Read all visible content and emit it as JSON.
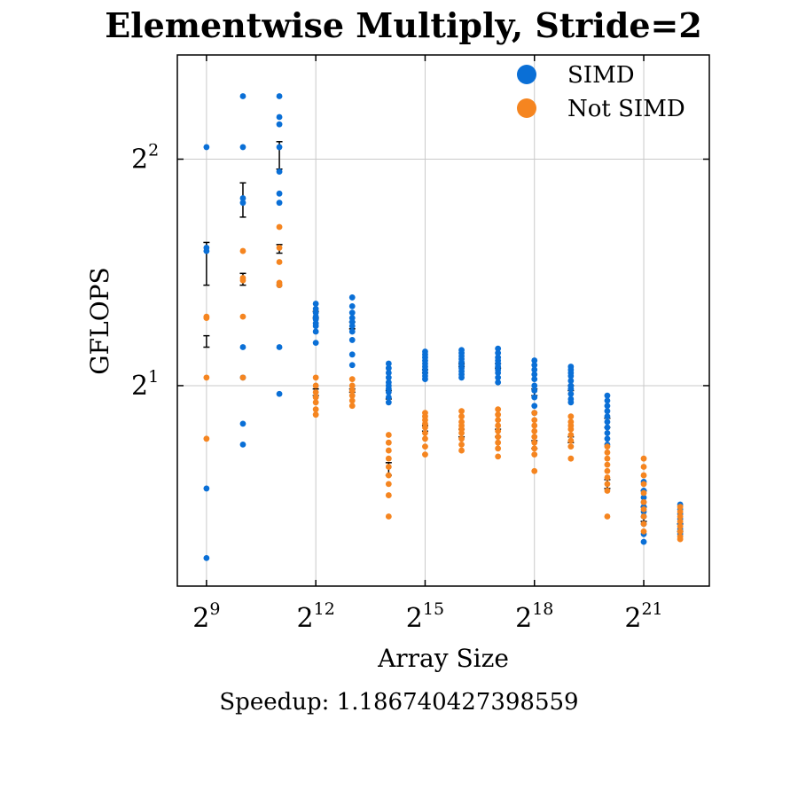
{
  "chart_data": {
    "type": "scatter",
    "title": "Elementwise Multiply, Stride=2",
    "xlabel": "Array Size",
    "ylabel": "GFLOPS",
    "caption": "Speedup: 1.186740427398559",
    "x_scale": "log2",
    "y_scale": "log2",
    "xlim_exp": [
      8.2,
      22.8
    ],
    "ylim_exp": [
      0.115,
      2.46
    ],
    "x_ticks": [
      {
        "base": "2",
        "exp": "9",
        "value": 512
      },
      {
        "base": "2",
        "exp": "12",
        "value": 4096
      },
      {
        "base": "2",
        "exp": "15",
        "value": 32768
      },
      {
        "base": "2",
        "exp": "18",
        "value": 262144
      },
      {
        "base": "2",
        "exp": "21",
        "value": 2097152
      }
    ],
    "y_ticks": [
      {
        "base": "2",
        "exp": "1",
        "value": 2
      },
      {
        "base": "2",
        "exp": "2",
        "value": 4
      }
    ],
    "grid": true,
    "legend_position": "top-right",
    "series": [
      {
        "name": "SIMD",
        "color": "#0a6fd6",
        "points": [
          [
            512,
            4.15
          ],
          [
            512,
            3.05
          ],
          [
            512,
            3.02
          ],
          [
            512,
            1.46
          ],
          [
            512,
            1.18
          ],
          [
            1024,
            4.85
          ],
          [
            1024,
            4.15
          ],
          [
            1024,
            3.55
          ],
          [
            1024,
            3.5
          ],
          [
            1024,
            2.25
          ],
          [
            1024,
            2.05
          ],
          [
            1024,
            1.78
          ],
          [
            1024,
            1.67
          ],
          [
            2048,
            4.85
          ],
          [
            2048,
            4.55
          ],
          [
            2048,
            4.45
          ],
          [
            2048,
            4.15
          ],
          [
            2048,
            3.85
          ],
          [
            2048,
            3.6
          ],
          [
            2048,
            3.5
          ],
          [
            2048,
            2.72
          ],
          [
            2048,
            2.25
          ],
          [
            2048,
            1.95
          ],
          [
            4096,
            2.57
          ],
          [
            4096,
            2.53
          ],
          [
            4096,
            2.5
          ],
          [
            4096,
            2.47
          ],
          [
            4096,
            2.45
          ],
          [
            4096,
            2.42
          ],
          [
            4096,
            2.4
          ],
          [
            4096,
            2.36
          ],
          [
            4096,
            2.28
          ],
          [
            8192,
            2.62
          ],
          [
            8192,
            2.55
          ],
          [
            8192,
            2.5
          ],
          [
            8192,
            2.46
          ],
          [
            8192,
            2.43
          ],
          [
            8192,
            2.4
          ],
          [
            8192,
            2.36
          ],
          [
            8192,
            2.3
          ],
          [
            8192,
            2.2
          ],
          [
            8192,
            2.13
          ],
          [
            16384,
            2.14
          ],
          [
            16384,
            2.11
          ],
          [
            16384,
            2.08
          ],
          [
            16384,
            2.05
          ],
          [
            16384,
            2.02
          ],
          [
            16384,
            2.0
          ],
          [
            16384,
            1.98
          ],
          [
            16384,
            1.96
          ],
          [
            16384,
            1.93
          ],
          [
            16384,
            1.9
          ],
          [
            32768,
            2.22
          ],
          [
            32768,
            2.2
          ],
          [
            32768,
            2.18
          ],
          [
            32768,
            2.16
          ],
          [
            32768,
            2.14
          ],
          [
            32768,
            2.12
          ],
          [
            32768,
            2.1
          ],
          [
            32768,
            2.08
          ],
          [
            32768,
            2.06
          ],
          [
            32768,
            2.04
          ],
          [
            65536,
            2.23
          ],
          [
            65536,
            2.21
          ],
          [
            65536,
            2.19
          ],
          [
            65536,
            2.17
          ],
          [
            65536,
            2.15
          ],
          [
            65536,
            2.13
          ],
          [
            65536,
            2.11
          ],
          [
            65536,
            2.09
          ],
          [
            65536,
            2.07
          ],
          [
            65536,
            2.05
          ],
          [
            131072,
            2.24
          ],
          [
            131072,
            2.21
          ],
          [
            131072,
            2.18
          ],
          [
            131072,
            2.16
          ],
          [
            131072,
            2.14
          ],
          [
            131072,
            2.12
          ],
          [
            131072,
            2.1
          ],
          [
            131072,
            2.08
          ],
          [
            131072,
            2.05
          ],
          [
            131072,
            2.02
          ],
          [
            262144,
            2.16
          ],
          [
            262144,
            2.13
          ],
          [
            262144,
            2.1
          ],
          [
            262144,
            2.07
          ],
          [
            262144,
            2.04
          ],
          [
            262144,
            2.0
          ],
          [
            262144,
            1.97
          ],
          [
            262144,
            1.93
          ],
          [
            262144,
            1.88
          ],
          [
            262144,
            1.84
          ],
          [
            524288,
            2.12
          ],
          [
            524288,
            2.1
          ],
          [
            524288,
            2.08
          ],
          [
            524288,
            2.06
          ],
          [
            524288,
            2.03
          ],
          [
            524288,
            2.0
          ],
          [
            524288,
            1.98
          ],
          [
            524288,
            1.95
          ],
          [
            524288,
            1.92
          ],
          [
            524288,
            1.9
          ],
          [
            1048576,
            1.94
          ],
          [
            1048576,
            1.91
          ],
          [
            1048576,
            1.88
          ],
          [
            1048576,
            1.85
          ],
          [
            1048576,
            1.82
          ],
          [
            1048576,
            1.79
          ],
          [
            1048576,
            1.76
          ],
          [
            1048576,
            1.73
          ],
          [
            1048576,
            1.7
          ],
          [
            1048576,
            1.67
          ],
          [
            2097152,
            1.49
          ],
          [
            2097152,
            1.45
          ],
          [
            2097152,
            1.42
          ],
          [
            2097152,
            1.4
          ],
          [
            2097152,
            1.38
          ],
          [
            2097152,
            1.36
          ],
          [
            2097152,
            1.34
          ],
          [
            2097152,
            1.31
          ],
          [
            2097152,
            1.27
          ],
          [
            2097152,
            1.24
          ],
          [
            4194304,
            1.39
          ],
          [
            4194304,
            1.37
          ],
          [
            4194304,
            1.35
          ],
          [
            4194304,
            1.33
          ],
          [
            4194304,
            1.31
          ],
          [
            4194304,
            1.29
          ],
          [
            4194304,
            1.28
          ],
          [
            4194304,
            1.27
          ]
        ],
        "errorbars": [
          {
            "x": 512,
            "low": 2.72,
            "high": 3.1
          },
          {
            "x": 1024,
            "low": 3.35,
            "high": 3.72
          },
          {
            "x": 2048,
            "low": 3.88,
            "high": 4.22
          },
          {
            "x": 4096,
            "low": 2.46,
            "high": 2.51
          },
          {
            "x": 8192,
            "low": 2.38,
            "high": 2.43
          },
          {
            "x": 16384,
            "low": 1.92,
            "high": 1.97
          },
          {
            "x": 32768,
            "low": 2.08,
            "high": 2.1
          },
          {
            "x": 65536,
            "low": 2.12,
            "high": 2.14
          },
          {
            "x": 131072,
            "low": 2.11,
            "high": 2.14
          },
          {
            "x": 262144,
            "low": 1.94,
            "high": 1.98
          },
          {
            "x": 524288,
            "low": 1.97,
            "high": 2.0
          },
          {
            "x": 1048576,
            "low": 1.76,
            "high": 1.81
          },
          {
            "x": 2097152,
            "low": 1.38,
            "high": 1.45
          }
        ]
      },
      {
        "name": "Not SIMD",
        "color": "#f58520",
        "points": [
          [
            512,
            2.47
          ],
          [
            512,
            2.46
          ],
          [
            512,
            2.05
          ],
          [
            512,
            1.7
          ],
          [
            1024,
            3.02
          ],
          [
            1024,
            2.78
          ],
          [
            1024,
            2.76
          ],
          [
            1024,
            2.47
          ],
          [
            1024,
            2.05
          ],
          [
            2048,
            3.25
          ],
          [
            2048,
            3.05
          ],
          [
            2048,
            2.92
          ],
          [
            2048,
            2.74
          ],
          [
            2048,
            2.72
          ],
          [
            4096,
            2.05
          ],
          [
            4096,
            2.0
          ],
          [
            4096,
            1.96
          ],
          [
            4096,
            1.93
          ],
          [
            4096,
            1.9
          ],
          [
            4096,
            1.86
          ],
          [
            4096,
            1.83
          ],
          [
            8192,
            2.04
          ],
          [
            8192,
            2.0
          ],
          [
            8192,
            1.97
          ],
          [
            8192,
            1.94
          ],
          [
            8192,
            1.91
          ],
          [
            8192,
            1.88
          ],
          [
            16384,
            1.72
          ],
          [
            16384,
            1.68
          ],
          [
            16384,
            1.64
          ],
          [
            16384,
            1.6
          ],
          [
            16384,
            1.56
          ],
          [
            16384,
            1.52
          ],
          [
            16384,
            1.48
          ],
          [
            16384,
            1.43
          ],
          [
            16384,
            1.34
          ],
          [
            32768,
            1.84
          ],
          [
            32768,
            1.82
          ],
          [
            32768,
            1.8
          ],
          [
            32768,
            1.78
          ],
          [
            32768,
            1.76
          ],
          [
            32768,
            1.73
          ],
          [
            32768,
            1.7
          ],
          [
            32768,
            1.66
          ],
          [
            32768,
            1.62
          ],
          [
            65536,
            1.85
          ],
          [
            65536,
            1.82
          ],
          [
            65536,
            1.79
          ],
          [
            65536,
            1.77
          ],
          [
            65536,
            1.75
          ],
          [
            65536,
            1.73
          ],
          [
            65536,
            1.7
          ],
          [
            65536,
            1.67
          ],
          [
            65536,
            1.64
          ],
          [
            131072,
            1.86
          ],
          [
            131072,
            1.83
          ],
          [
            131072,
            1.8
          ],
          [
            131072,
            1.77
          ],
          [
            131072,
            1.74
          ],
          [
            131072,
            1.71
          ],
          [
            131072,
            1.68
          ],
          [
            131072,
            1.65
          ],
          [
            131072,
            1.61
          ],
          [
            262144,
            1.84
          ],
          [
            262144,
            1.8
          ],
          [
            262144,
            1.77
          ],
          [
            262144,
            1.74
          ],
          [
            262144,
            1.71
          ],
          [
            262144,
            1.68
          ],
          [
            262144,
            1.65
          ],
          [
            262144,
            1.62
          ],
          [
            262144,
            1.54
          ],
          [
            524288,
            1.82
          ],
          [
            524288,
            1.79
          ],
          [
            524288,
            1.77
          ],
          [
            524288,
            1.75
          ],
          [
            524288,
            1.72
          ],
          [
            524288,
            1.69
          ],
          [
            524288,
            1.66
          ],
          [
            524288,
            1.6
          ],
          [
            1048576,
            1.66
          ],
          [
            1048576,
            1.63
          ],
          [
            1048576,
            1.6
          ],
          [
            1048576,
            1.57
          ],
          [
            1048576,
            1.54
          ],
          [
            1048576,
            1.51
          ],
          [
            1048576,
            1.48
          ],
          [
            1048576,
            1.45
          ],
          [
            1048576,
            1.34
          ],
          [
            2097152,
            1.6
          ],
          [
            2097152,
            1.56
          ],
          [
            2097152,
            1.52
          ],
          [
            2097152,
            1.48
          ],
          [
            2097152,
            1.44
          ],
          [
            2097152,
            1.4
          ],
          [
            2097152,
            1.37
          ],
          [
            2097152,
            1.34
          ],
          [
            2097152,
            1.31
          ],
          [
            2097152,
            1.28
          ],
          [
            4194304,
            1.38
          ],
          [
            4194304,
            1.36
          ],
          [
            4194304,
            1.34
          ],
          [
            4194304,
            1.32
          ],
          [
            4194304,
            1.3
          ],
          [
            4194304,
            1.28
          ],
          [
            4194304,
            1.26
          ],
          [
            4194304,
            1.25
          ]
        ],
        "errorbars": [
          {
            "x": 512,
            "low": 2.25,
            "high": 2.33
          },
          {
            "x": 1024,
            "low": 2.72,
            "high": 2.82
          },
          {
            "x": 2048,
            "low": 3.0,
            "high": 3.08
          },
          {
            "x": 4096,
            "low": 1.94,
            "high": 1.98
          },
          {
            "x": 8192,
            "low": 1.96,
            "high": 1.98
          },
          {
            "x": 16384,
            "low": 1.52,
            "high": 1.58
          },
          {
            "x": 32768,
            "low": 1.74,
            "high": 1.77
          },
          {
            "x": 65536,
            "low": 1.71,
            "high": 1.75
          },
          {
            "x": 131072,
            "low": 1.71,
            "high": 1.75
          },
          {
            "x": 262144,
            "low": 1.65,
            "high": 1.69
          },
          {
            "x": 524288,
            "low": 1.68,
            "high": 1.71
          },
          {
            "x": 1048576,
            "low": 1.46,
            "high": 1.5
          },
          {
            "x": 2097152,
            "low": 1.32,
            "high": 1.38
          },
          {
            "x": 4194304,
            "low": 1.28,
            "high": 1.31
          }
        ]
      }
    ]
  }
}
